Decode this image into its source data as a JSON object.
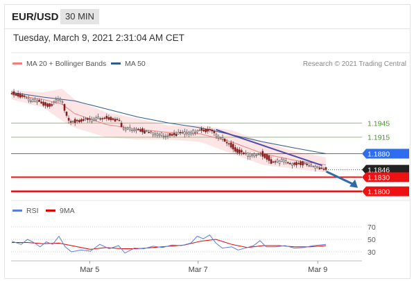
{
  "header": {
    "pair": "EUR/USD",
    "timeframe": "30 MIN"
  },
  "datetime": "Tuesday, March 9, 2021 2:31:04 AM CET",
  "legend": {
    "ma20": {
      "label": "MA 20 + Bollinger Bands",
      "color": "#f08080"
    },
    "ma50": {
      "label": "MA 50",
      "color": "#2f5b8f"
    }
  },
  "copyright": "Research © 2021 Trading Central",
  "rsi_legend": {
    "rsi": {
      "label": "RSI",
      "color": "#5b7be0"
    },
    "ma": {
      "label": "9MA",
      "color": "#e00000"
    }
  },
  "levels": [
    {
      "label": "1.1945",
      "value": 1.1945,
      "style": "green"
    },
    {
      "label": "1.1915",
      "value": 1.1915,
      "style": "green"
    },
    {
      "label": "1.1880",
      "value": 1.188,
      "style": "blue"
    },
    {
      "label": "1.1846",
      "value": 1.1846,
      "style": "current"
    },
    {
      "label": "1.1830",
      "value": 1.183,
      "style": "red"
    },
    {
      "label": "1.1800",
      "value": 1.18,
      "style": "red-bold"
    }
  ],
  "x_axis": {
    "labels": [
      "Mar 5",
      "Mar 7",
      "Mar 9"
    ],
    "positions": [
      0.224,
      0.533,
      0.874
    ]
  },
  "rsi_axis": {
    "ticks": [
      "70",
      "50",
      "30"
    ],
    "values": [
      70,
      50,
      30
    ],
    "range": [
      20,
      80
    ]
  },
  "chart_data": {
    "type": "candlestick",
    "price_range": [
      1.1785,
      1.205
    ],
    "price_path": [
      [
        0.0,
        1.2008
      ],
      [
        0.02,
        1.2005
      ],
      [
        0.04,
        1.1998
      ],
      [
        0.06,
        1.199
      ],
      [
        0.08,
        1.1994
      ],
      [
        0.1,
        1.1985
      ],
      [
        0.12,
        1.1983
      ],
      [
        0.14,
        1.199
      ],
      [
        0.15,
        1.1996
      ],
      [
        0.16,
        1.199
      ],
      [
        0.17,
        1.1965
      ],
      [
        0.18,
        1.1952
      ],
      [
        0.2,
        1.1948
      ],
      [
        0.22,
        1.1952
      ],
      [
        0.25,
        1.195
      ],
      [
        0.28,
        1.1958
      ],
      [
        0.31,
        1.1955
      ],
      [
        0.34,
        1.195
      ],
      [
        0.35,
        1.1932
      ],
      [
        0.38,
        1.1933
      ],
      [
        0.41,
        1.193
      ],
      [
        0.43,
        1.1925
      ],
      [
        0.45,
        1.1922
      ],
      [
        0.48,
        1.192
      ],
      [
        0.52,
        1.1921
      ],
      [
        0.55,
        1.1925
      ],
      [
        0.57,
        1.1924
      ],
      [
        0.59,
        1.193
      ],
      [
        0.61,
        1.193
      ],
      [
        0.63,
        1.1928
      ],
      [
        0.65,
        1.1918
      ],
      [
        0.67,
        1.1912
      ],
      [
        0.69,
        1.1902
      ],
      [
        0.71,
        1.1888
      ],
      [
        0.74,
        1.1878
      ],
      [
        0.77,
        1.1877
      ],
      [
        0.79,
        1.1882
      ],
      [
        0.81,
        1.1873
      ],
      [
        0.83,
        1.186
      ],
      [
        0.86,
        1.1865
      ],
      [
        0.89,
        1.1858
      ],
      [
        0.92,
        1.186
      ],
      [
        0.94,
        1.1855
      ],
      [
        0.96,
        1.1852
      ],
      [
        1.0,
        1.1848
      ]
    ],
    "ma50_path": [
      [
        0.0,
        1.201
      ],
      [
        0.1,
        1.2
      ],
      [
        0.2,
        1.1992
      ],
      [
        0.3,
        1.1975
      ],
      [
        0.4,
        1.1958
      ],
      [
        0.5,
        1.1945
      ],
      [
        0.6,
        1.1935
      ],
      [
        0.7,
        1.192
      ],
      [
        0.8,
        1.1905
      ],
      [
        0.9,
        1.1892
      ],
      [
        1.0,
        1.188
      ]
    ],
    "bb_upper": [
      [
        0.0,
        1.2015
      ],
      [
        0.1,
        1.201
      ],
      [
        0.16,
        1.2018
      ],
      [
        0.2,
        1.1995
      ],
      [
        0.3,
        1.1968
      ],
      [
        0.4,
        1.1955
      ],
      [
        0.5,
        1.194
      ],
      [
        0.6,
        1.194
      ],
      [
        0.7,
        1.193
      ],
      [
        0.8,
        1.1905
      ],
      [
        0.9,
        1.1885
      ],
      [
        1.0,
        1.1872
      ]
    ],
    "bb_lower": [
      [
        0.0,
        1.1995
      ],
      [
        0.1,
        1.1978
      ],
      [
        0.16,
        1.195
      ],
      [
        0.2,
        1.1935
      ],
      [
        0.3,
        1.1915
      ],
      [
        0.4,
        1.191
      ],
      [
        0.5,
        1.191
      ],
      [
        0.6,
        1.1905
      ],
      [
        0.7,
        1.188
      ],
      [
        0.8,
        1.1856
      ],
      [
        0.9,
        1.1848
      ],
      [
        1.0,
        1.184
      ]
    ],
    "ma20_path": [
      [
        0.0,
        1.2005
      ],
      [
        0.1,
        1.1995
      ],
      [
        0.16,
        1.1985
      ],
      [
        0.2,
        1.1965
      ],
      [
        0.3,
        1.1942
      ],
      [
        0.4,
        1.1932
      ],
      [
        0.5,
        1.1925
      ],
      [
        0.6,
        1.1922
      ],
      [
        0.7,
        1.1905
      ],
      [
        0.8,
        1.188
      ],
      [
        0.9,
        1.1866
      ],
      [
        1.0,
        1.1856
      ]
    ],
    "trendline": [
      [
        0.65,
        1.1931
      ],
      [
        0.988,
        1.1855
      ]
    ],
    "forecast_arrow": [
      [
        0.988,
        1.1845
      ],
      [
        1.0,
        1.18
      ]
    ],
    "rsi_path": [
      [
        0.0,
        47
      ],
      [
        0.03,
        42
      ],
      [
        0.05,
        50
      ],
      [
        0.07,
        45
      ],
      [
        0.09,
        38
      ],
      [
        0.11,
        46
      ],
      [
        0.13,
        42
      ],
      [
        0.15,
        55
      ],
      [
        0.17,
        38
      ],
      [
        0.19,
        30
      ],
      [
        0.22,
        33
      ],
      [
        0.25,
        31
      ],
      [
        0.28,
        42
      ],
      [
        0.31,
        35
      ],
      [
        0.34,
        40
      ],
      [
        0.36,
        28
      ],
      [
        0.39,
        36
      ],
      [
        0.42,
        35
      ],
      [
        0.45,
        39
      ],
      [
        0.48,
        37
      ],
      [
        0.51,
        41
      ],
      [
        0.54,
        40
      ],
      [
        0.57,
        44
      ],
      [
        0.59,
        55
      ],
      [
        0.61,
        51
      ],
      [
        0.63,
        57
      ],
      [
        0.65,
        44
      ],
      [
        0.67,
        36
      ],
      [
        0.7,
        38
      ],
      [
        0.72,
        33
      ],
      [
        0.75,
        37
      ],
      [
        0.77,
        40
      ],
      [
        0.79,
        48
      ],
      [
        0.81,
        38
      ],
      [
        0.84,
        38
      ],
      [
        0.87,
        40
      ],
      [
        0.9,
        36
      ],
      [
        0.93,
        37
      ],
      [
        0.96,
        40
      ],
      [
        1.0,
        42
      ]
    ],
    "rsi_ma_path": [
      [
        0.0,
        45
      ],
      [
        0.05,
        45
      ],
      [
        0.1,
        43
      ],
      [
        0.15,
        44
      ],
      [
        0.2,
        39
      ],
      [
        0.25,
        34
      ],
      [
        0.3,
        37
      ],
      [
        0.35,
        35
      ],
      [
        0.4,
        35
      ],
      [
        0.45,
        37
      ],
      [
        0.5,
        39
      ],
      [
        0.55,
        41
      ],
      [
        0.6,
        47
      ],
      [
        0.65,
        50
      ],
      [
        0.7,
        42
      ],
      [
        0.75,
        37
      ],
      [
        0.8,
        40
      ],
      [
        0.85,
        40
      ],
      [
        0.9,
        38
      ],
      [
        0.95,
        38
      ],
      [
        1.0,
        40
      ]
    ]
  }
}
